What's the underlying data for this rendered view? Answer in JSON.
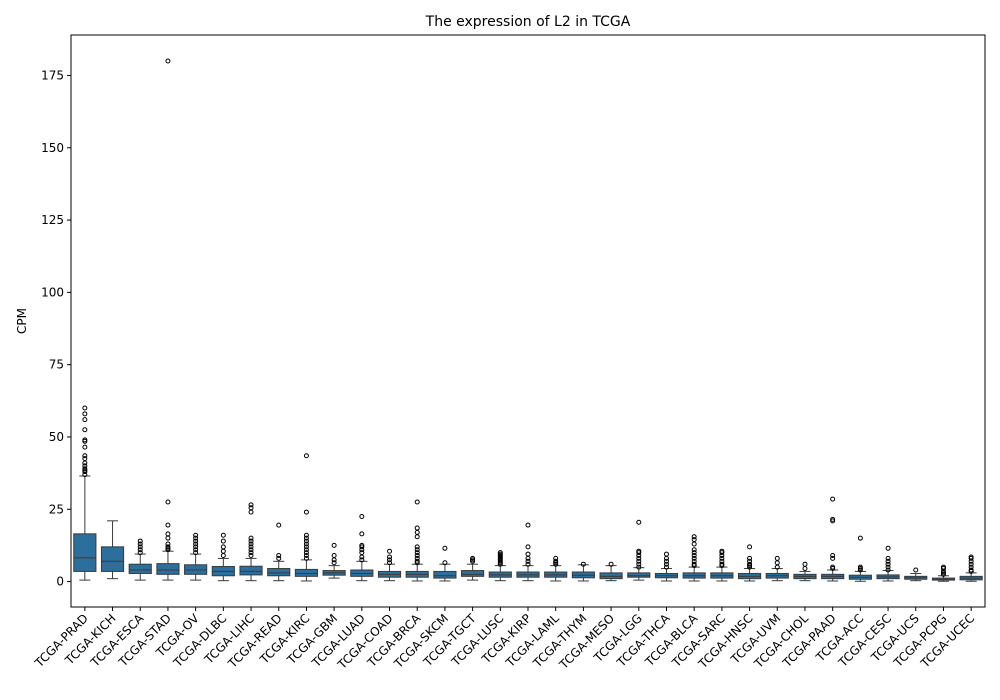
{
  "chart_data": {
    "type": "box",
    "title": "The expression of L2 in TCGA",
    "xlabel": "",
    "ylabel": "CPM",
    "ylim": [
      -8.8,
      189
    ],
    "yticks": [
      0,
      25,
      50,
      75,
      100,
      125,
      150,
      175
    ],
    "grid": false,
    "box_color": "#2c6e9c",
    "categories": [
      "TCGA-PRAD",
      "TCGA-KICH",
      "TCGA-ESCA",
      "TCGA-STAD",
      "TCGA-OV",
      "TCGA-DLBC",
      "TCGA-LIHC",
      "TCGA-READ",
      "TCGA-KIRC",
      "TCGA-GBM",
      "TCGA-LUAD",
      "TCGA-COAD",
      "TCGA-BRCA",
      "TCGA-SKCM",
      "TCGA-TGCT",
      "TCGA-LUSC",
      "TCGA-KIRP",
      "TCGA-LAML",
      "TCGA-THYM",
      "TCGA-MESO",
      "TCGA-LGG",
      "TCGA-THCA",
      "TCGA-BLCA",
      "TCGA-SARC",
      "TCGA-HNSC",
      "TCGA-UVM",
      "TCGA-CHOL",
      "TCGA-PAAD",
      "TCGA-ACC",
      "TCGA-CESC",
      "TCGA-UCS",
      "TCGA-PCPG",
      "TCGA-UCEC"
    ],
    "boxes": [
      {
        "whisker_low": 0.5,
        "q1": 3.5,
        "median": 8.2,
        "q3": 16.5,
        "whisker_high": 36.5,
        "outliers": [
          37,
          38,
          38.5,
          39,
          40,
          41,
          42.5,
          43.5,
          46.5,
          48.5,
          49,
          52.5,
          56,
          58,
          60
        ]
      },
      {
        "whisker_low": 1,
        "q1": 3.5,
        "median": 7,
        "q3": 12,
        "whisker_high": 21,
        "outliers": []
      },
      {
        "whisker_low": 0.5,
        "q1": 2.8,
        "median": 4,
        "q3": 6,
        "whisker_high": 9.5,
        "outliers": [
          10,
          11,
          12,
          13,
          14
        ]
      },
      {
        "whisker_low": 0.5,
        "q1": 2.5,
        "median": 4,
        "q3": 6.2,
        "whisker_high": 10.5,
        "outliers": [
          11,
          11.5,
          12,
          13,
          15,
          16.5,
          19.5,
          27.5,
          180
        ]
      },
      {
        "whisker_low": 0.5,
        "q1": 2.5,
        "median": 4,
        "q3": 5.8,
        "whisker_high": 9.5,
        "outliers": [
          10,
          11,
          12,
          13,
          14,
          15,
          16
        ]
      },
      {
        "whisker_low": 0.3,
        "q1": 2,
        "median": 3.5,
        "q3": 5.2,
        "whisker_high": 8,
        "outliers": [
          9,
          10.5,
          12,
          14,
          16
        ]
      },
      {
        "whisker_low": 0.3,
        "q1": 2.3,
        "median": 3.5,
        "q3": 5.3,
        "whisker_high": 8,
        "outliers": [
          9,
          10,
          11,
          12,
          13,
          14,
          15,
          24,
          25.5,
          26.5
        ]
      },
      {
        "whisker_low": 0.3,
        "q1": 2,
        "median": 3,
        "q3": 4.5,
        "whisker_high": 7,
        "outliers": [
          8,
          9,
          19.5
        ]
      },
      {
        "whisker_low": 0.2,
        "q1": 1.8,
        "median": 2.8,
        "q3": 4.2,
        "whisker_high": 7.5,
        "outliers": [
          8,
          9,
          10,
          11,
          12,
          13,
          14,
          15,
          16,
          24,
          43.5
        ]
      },
      {
        "whisker_low": 1.2,
        "q1": 2.2,
        "median": 3,
        "q3": 3.8,
        "whisker_high": 5.5,
        "outliers": [
          6.5,
          7.5,
          9,
          12.5
        ]
      },
      {
        "whisker_low": 0.3,
        "q1": 1.8,
        "median": 2.8,
        "q3": 4,
        "whisker_high": 7,
        "outliers": [
          7.5,
          8.5,
          10,
          11,
          12,
          12.5,
          16.5,
          22.5
        ]
      },
      {
        "whisker_low": 0.3,
        "q1": 1.5,
        "median": 2.5,
        "q3": 3.5,
        "whisker_high": 6,
        "outliers": [
          6.5,
          7.5,
          8.5,
          10.5
        ]
      },
      {
        "whisker_low": 0.2,
        "q1": 1.5,
        "median": 2.5,
        "q3": 3.5,
        "whisker_high": 6,
        "outliers": [
          6.5,
          7,
          8,
          9,
          10,
          11,
          12,
          15.5,
          17,
          18.5,
          27.5
        ]
      },
      {
        "whisker_low": 0.2,
        "q1": 1.2,
        "median": 2,
        "q3": 3.5,
        "whisker_high": 6,
        "outliers": [
          6.5,
          11.5
        ]
      },
      {
        "whisker_low": 0.5,
        "q1": 1.8,
        "median": 2.5,
        "q3": 3.8,
        "whisker_high": 6,
        "outliers": [
          7,
          7.5,
          8
        ]
      },
      {
        "whisker_low": 0.3,
        "q1": 1.5,
        "median": 2.3,
        "q3": 3.3,
        "whisker_high": 5.5,
        "outliers": [
          6,
          6.5,
          7,
          7.5,
          8,
          8.5,
          9,
          9.5,
          10
        ]
      },
      {
        "whisker_low": 0.3,
        "q1": 1.5,
        "median": 2.3,
        "q3": 3.3,
        "whisker_high": 5.5,
        "outliers": [
          6,
          7,
          8,
          9.5,
          12,
          19.5
        ]
      },
      {
        "whisker_low": 0.2,
        "q1": 1.5,
        "median": 2.3,
        "q3": 3.3,
        "whisker_high": 5.5,
        "outliers": [
          6,
          6.5,
          7,
          8
        ]
      },
      {
        "whisker_low": 0.2,
        "q1": 1.3,
        "median": 2.2,
        "q3": 3.3,
        "whisker_high": 5.8,
        "outliers": [
          6
        ]
      },
      {
        "whisker_low": 0.3,
        "q1": 1,
        "median": 1.8,
        "q3": 3,
        "whisker_high": 5.5,
        "outliers": [
          6
        ]
      },
      {
        "whisker_low": 0.5,
        "q1": 1.5,
        "median": 2,
        "q3": 3,
        "whisker_high": 4.8,
        "outliers": [
          5,
          6,
          7,
          8,
          9,
          10,
          10.5,
          20.5
        ]
      },
      {
        "whisker_low": 0.2,
        "q1": 1.3,
        "median": 2,
        "q3": 2.8,
        "whisker_high": 4.5,
        "outliers": [
          5,
          6,
          7,
          8,
          9.5
        ]
      },
      {
        "whisker_low": 0.2,
        "q1": 1.2,
        "median": 2,
        "q3": 3,
        "whisker_high": 5,
        "outliers": [
          5.5,
          6,
          7,
          8,
          9,
          10,
          11,
          13,
          14.5,
          15.5
        ]
      },
      {
        "whisker_low": 0.2,
        "q1": 1.2,
        "median": 2,
        "q3": 3,
        "whisker_high": 5,
        "outliers": [
          5.5,
          6,
          7,
          8,
          9,
          10,
          10.5
        ]
      },
      {
        "whisker_low": 0.2,
        "q1": 1,
        "median": 1.8,
        "q3": 2.8,
        "whisker_high": 4.5,
        "outliers": [
          5,
          5.5,
          6,
          7,
          8,
          12
        ]
      },
      {
        "whisker_low": 0.3,
        "q1": 1.2,
        "median": 2,
        "q3": 2.8,
        "whisker_high": 4.5,
        "outliers": [
          5,
          6.5,
          8
        ]
      },
      {
        "whisker_low": 0.3,
        "q1": 1,
        "median": 1.8,
        "q3": 2.5,
        "whisker_high": 3.5,
        "outliers": [
          4.5,
          6
        ]
      },
      {
        "whisker_low": 0.2,
        "q1": 1,
        "median": 1.8,
        "q3": 2.5,
        "whisker_high": 4,
        "outliers": [
          4.5,
          5,
          8,
          9,
          21,
          21.5,
          28.5
        ]
      },
      {
        "whisker_low": 0.1,
        "q1": 0.8,
        "median": 1.5,
        "q3": 2.2,
        "whisker_high": 3.5,
        "outliers": [
          4,
          4.5,
          5,
          15
        ]
      },
      {
        "whisker_low": 0.2,
        "q1": 1,
        "median": 1.6,
        "q3": 2.3,
        "whisker_high": 3.8,
        "outliers": [
          4,
          5,
          6,
          7,
          8,
          11.5
        ]
      },
      {
        "whisker_low": 0.3,
        "q1": 0.8,
        "median": 1.3,
        "q3": 1.8,
        "whisker_high": 2.8,
        "outliers": [
          4
        ]
      },
      {
        "whisker_low": 0.1,
        "q1": 0.5,
        "median": 0.8,
        "q3": 1.2,
        "whisker_high": 2,
        "outliers": [
          2.5,
          3,
          3.5,
          4.5,
          5
        ]
      },
      {
        "whisker_low": 0.1,
        "q1": 0.6,
        "median": 1.2,
        "q3": 1.8,
        "whisker_high": 3,
        "outliers": [
          3.5,
          4,
          5,
          6,
          7,
          8,
          8.5
        ]
      }
    ]
  }
}
